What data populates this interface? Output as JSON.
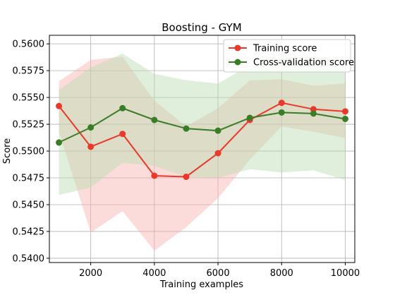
{
  "chart_data": {
    "type": "line",
    "title": "Boosting - GYM",
    "xlabel": "Training examples",
    "ylabel": "Score",
    "xlim": [
      700,
      10300
    ],
    "ylim": [
      0.5396,
      0.5608
    ],
    "x_ticks": [
      2000,
      4000,
      6000,
      8000,
      10000
    ],
    "y_ticks": [
      0.54,
      0.5425,
      0.545,
      0.5475,
      0.55,
      0.5525,
      0.555,
      0.5575,
      0.56
    ],
    "grid": true,
    "legend_position": "top-right",
    "x": [
      1000,
      2000,
      3000,
      4000,
      5000,
      6000,
      7000,
      8000,
      9000,
      10000
    ],
    "series": [
      {
        "name": "Training score",
        "color": "#e8392a",
        "band_color": "#f6b2ae",
        "values": [
          0.5542,
          0.5504,
          0.5516,
          0.5477,
          0.5476,
          0.5498,
          0.5529,
          0.5545,
          0.5539,
          0.5537
        ],
        "upper": [
          0.5565,
          0.5585,
          0.5588,
          0.5547,
          0.5523,
          0.554,
          0.5566,
          0.5567,
          0.5561,
          0.5563
        ],
        "lower": [
          0.5518,
          0.5424,
          0.5444,
          0.5407,
          0.5429,
          0.5456,
          0.5492,
          0.5523,
          0.5518,
          0.5512
        ]
      },
      {
        "name": "Cross-validation score",
        "color": "#3a7d26",
        "band_color": "#b9dcb0",
        "values": [
          0.5508,
          0.5522,
          0.554,
          0.5529,
          0.5521,
          0.5519,
          0.5531,
          0.5536,
          0.5535,
          0.553
        ],
        "upper": [
          0.5557,
          0.5578,
          0.5591,
          0.5572,
          0.5566,
          0.5563,
          0.558,
          0.5592,
          0.5588,
          0.5587
        ],
        "lower": [
          0.5459,
          0.5466,
          0.5489,
          0.5486,
          0.5476,
          0.5475,
          0.5483,
          0.548,
          0.5482,
          0.5473
        ]
      }
    ]
  }
}
